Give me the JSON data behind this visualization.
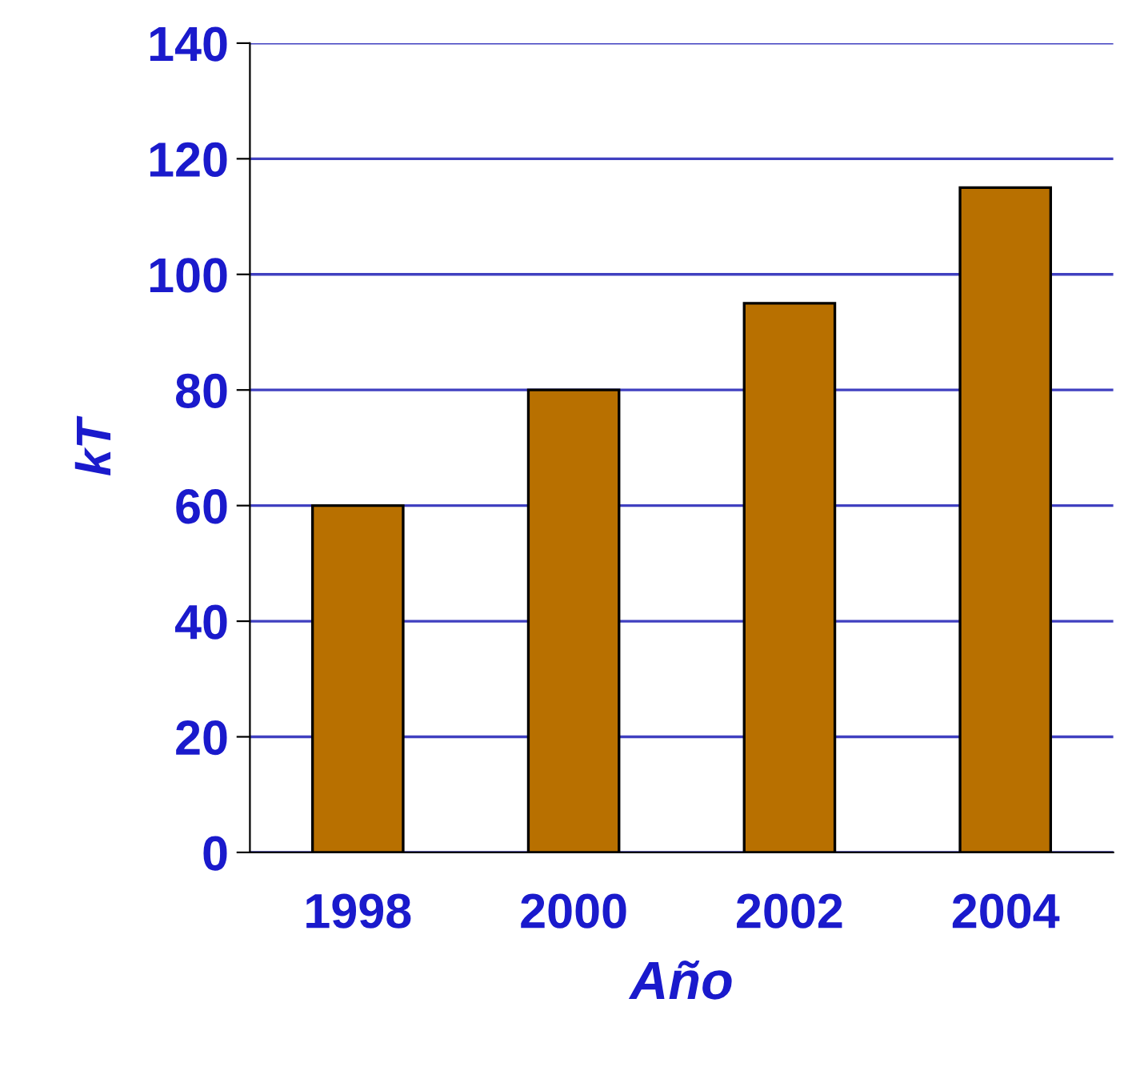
{
  "chart_data": {
    "type": "bar",
    "xlabel": "Año",
    "ylabel": "kT",
    "categories": [
      "1998",
      "2000",
      "2002",
      "2004"
    ],
    "values": [
      60,
      80,
      95,
      115
    ],
    "color": "#b87000",
    "ylim": [
      0,
      140
    ],
    "yticks": [
      0,
      20,
      40,
      60,
      80,
      100,
      120,
      140
    ],
    "grid": "y"
  }
}
